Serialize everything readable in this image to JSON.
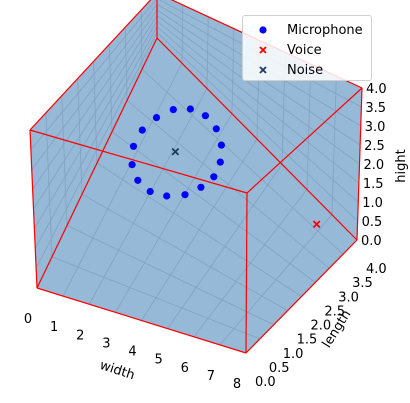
{
  "chart_data": {
    "type": "scatter3d",
    "xlabel": "width",
    "ylabel": "length",
    "zlabel": "hight",
    "xlim": [
      0,
      8
    ],
    "ylim": [
      0,
      4
    ],
    "zlim": [
      0,
      4
    ],
    "xticks": [
      "0",
      "1",
      "2",
      "3",
      "4",
      "5",
      "6",
      "7",
      "8"
    ],
    "yticks": [
      "0.0",
      "0.5",
      "1.0",
      "1.5",
      "2.0",
      "2.5",
      "3.0",
      "3.5",
      "4.0"
    ],
    "zticks": [
      "0.0",
      "0.5",
      "1.0",
      "1.5",
      "2.0",
      "2.5",
      "3.0",
      "3.5",
      "4.0"
    ],
    "series": [
      {
        "name": "Microphone",
        "marker": "circle",
        "color": "#0000ff",
        "points": [
          {
            "x": 4.0,
            "y": 2.5,
            "z": 1.0
          },
          {
            "x": 3.9,
            "y": 2.81,
            "z": 1.0
          },
          {
            "x": 3.62,
            "y": 3.09,
            "z": 1.0
          },
          {
            "x": 3.2,
            "y": 3.28,
            "z": 1.0
          },
          {
            "x": 2.69,
            "y": 3.35,
            "z": 1.0
          },
          {
            "x": 2.18,
            "y": 3.28,
            "z": 1.0
          },
          {
            "x": 1.73,
            "y": 3.09,
            "z": 1.0
          },
          {
            "x": 1.4,
            "y": 2.81,
            "z": 1.0
          },
          {
            "x": 1.21,
            "y": 2.5,
            "z": 1.0
          },
          {
            "x": 1.23,
            "y": 2.19,
            "z": 1.0
          },
          {
            "x": 1.5,
            "y": 1.91,
            "z": 1.0
          },
          {
            "x": 1.94,
            "y": 1.72,
            "z": 1.0
          },
          {
            "x": 2.5,
            "y": 1.65,
            "z": 1.0
          },
          {
            "x": 3.06,
            "y": 1.72,
            "z": 1.0
          },
          {
            "x": 3.55,
            "y": 1.91,
            "z": 1.0
          },
          {
            "x": 3.85,
            "y": 2.19,
            "z": 1.0
          }
        ]
      },
      {
        "name": "Voice",
        "marker": "x",
        "color": "#ff0000",
        "points": [
          {
            "x": 8.0,
            "y": 2.5,
            "z": 1.5
          }
        ]
      },
      {
        "name": "Noise",
        "marker": "x",
        "color": "#1f3a5a",
        "points": [
          {
            "x": 2.5,
            "y": 2.5,
            "z": 1.0
          }
        ]
      }
    ],
    "legend_position": "top-right",
    "pane_color": "#94b8d6",
    "box_edge_color": "#ff0000"
  }
}
